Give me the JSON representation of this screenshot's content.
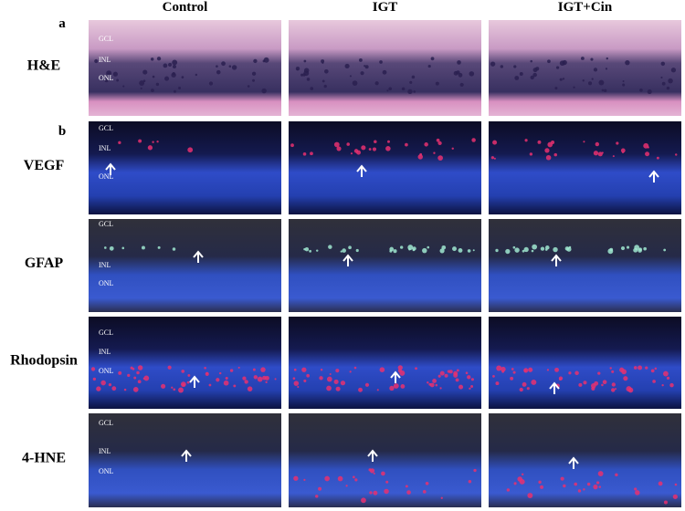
{
  "figure": {
    "panels": [
      "a",
      "b"
    ],
    "columns": [
      "Control",
      "IGT",
      "IGT+Cin"
    ],
    "rows": [
      {
        "label": "H&E",
        "layers": [
          "GCL",
          "INL",
          "ONL"
        ]
      },
      {
        "label": "VEGF",
        "layers": [
          "GCL",
          "INL",
          "ONL"
        ]
      },
      {
        "label": "GFAP",
        "layers": [
          "GCL",
          "INL",
          "ONL"
        ]
      },
      {
        "label": "Rhodopsin",
        "layers": [
          "GCL",
          "INL",
          "ONL"
        ]
      },
      {
        "label": "4-HNE",
        "layers": [
          "GCL",
          "INL",
          "ONL"
        ]
      }
    ]
  }
}
